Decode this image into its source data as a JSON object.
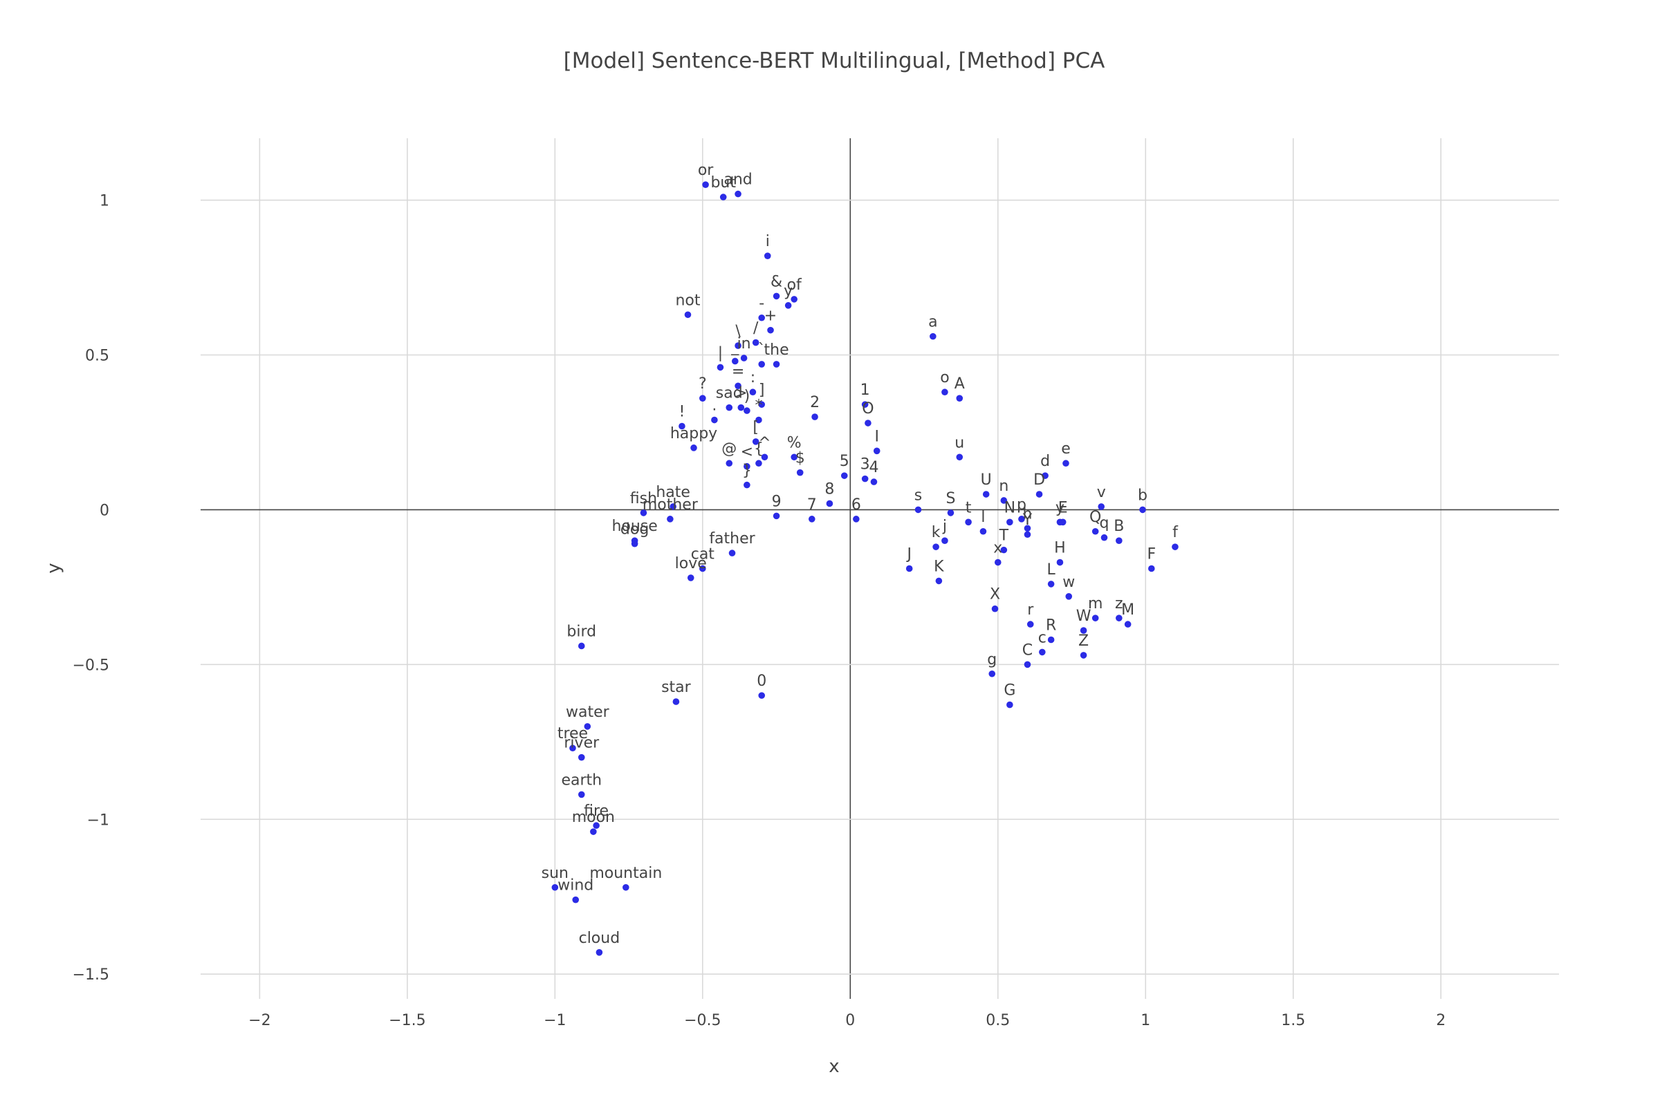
{
  "chart_data": {
    "type": "scatter",
    "title": "[Model] Sentence-BERT Multilingual, [Method] PCA",
    "xlabel": "x",
    "ylabel": "y",
    "xlim": [
      -2.2,
      2.4
    ],
    "ylim": [
      -1.58,
      1.2
    ],
    "xticks": [
      -2,
      -1.5,
      -1,
      -0.5,
      0,
      0.5,
      1,
      1.5,
      2
    ],
    "yticks": [
      -1.5,
      -1,
      -0.5,
      0,
      0.5,
      1
    ],
    "xtick_labels": [
      "−2",
      "−1.5",
      "−1",
      "−0.5",
      "0",
      "0.5",
      "1",
      "1.5",
      "2"
    ],
    "ytick_labels": [
      "−1.5",
      "−1",
      "−0.5",
      "0",
      "0.5",
      "1"
    ],
    "grid": true,
    "marker_color": "#2b2be6",
    "points": [
      {
        "label": "or",
        "x": -0.49,
        "y": 1.05
      },
      {
        "label": "but",
        "x": -0.43,
        "y": 1.01
      },
      {
        "label": "and",
        "x": -0.38,
        "y": 1.02
      },
      {
        "label": "i",
        "x": -0.28,
        "y": 0.82
      },
      {
        "label": "&",
        "x": -0.25,
        "y": 0.69
      },
      {
        "label": "y",
        "x": -0.21,
        "y": 0.66
      },
      {
        "label": "of",
        "x": -0.19,
        "y": 0.68
      },
      {
        "label": "-",
        "x": -0.3,
        "y": 0.62
      },
      {
        "label": "+",
        "x": -0.27,
        "y": 0.58
      },
      {
        "label": "/",
        "x": -0.32,
        "y": 0.54
      },
      {
        "label": "not",
        "x": -0.55,
        "y": 0.63
      },
      {
        "label": "\\",
        "x": -0.38,
        "y": 0.53
      },
      {
        "label": "in",
        "x": -0.36,
        "y": 0.49
      },
      {
        "label": "`",
        "x": -0.3,
        "y": 0.47
      },
      {
        "label": "the",
        "x": -0.25,
        "y": 0.47
      },
      {
        "label": "|",
        "x": -0.44,
        "y": 0.46
      },
      {
        "label": "_",
        "x": -0.39,
        "y": 0.48
      },
      {
        "label": "=",
        "x": -0.38,
        "y": 0.4
      },
      {
        "label": ":",
        "x": -0.33,
        "y": 0.38
      },
      {
        "label": "?",
        "x": -0.5,
        "y": 0.36
      },
      {
        "label": "]",
        "x": -0.3,
        "y": 0.34
      },
      {
        "label": ">",
        "x": -0.37,
        "y": 0.33
      },
      {
        "label": ")",
        "x": -0.35,
        "y": 0.32
      },
      {
        "label": "sad",
        "x": -0.41,
        "y": 0.33
      },
      {
        "label": ".",
        "x": -0.46,
        "y": 0.29
      },
      {
        "label": "*",
        "x": -0.31,
        "y": 0.29
      },
      {
        "label": "!",
        "x": -0.57,
        "y": 0.27
      },
      {
        "label": "[",
        "x": -0.32,
        "y": 0.22
      },
      {
        "label": "happy",
        "x": -0.53,
        "y": 0.2
      },
      {
        "label": "^",
        "x": -0.29,
        "y": 0.17
      },
      {
        "label": "{",
        "x": -0.31,
        "y": 0.15
      },
      {
        "label": "<",
        "x": -0.35,
        "y": 0.14
      },
      {
        "label": "@",
        "x": -0.41,
        "y": 0.15
      },
      {
        "label": "}",
        "x": -0.35,
        "y": 0.08
      },
      {
        "label": "2",
        "x": -0.12,
        "y": 0.3
      },
      {
        "label": "%",
        "x": -0.19,
        "y": 0.17
      },
      {
        "label": "$",
        "x": -0.17,
        "y": 0.12
      },
      {
        "label": "5",
        "x": -0.02,
        "y": 0.11
      },
      {
        "label": "1",
        "x": 0.05,
        "y": 0.34
      },
      {
        "label": "O",
        "x": 0.06,
        "y": 0.28
      },
      {
        "label": "I",
        "x": 0.09,
        "y": 0.19
      },
      {
        "label": "3",
        "x": 0.05,
        "y": 0.1
      },
      {
        "label": "4",
        "x": 0.08,
        "y": 0.09
      },
      {
        "label": "8",
        "x": -0.07,
        "y": 0.02
      },
      {
        "label": "9",
        "x": -0.25,
        "y": -0.02
      },
      {
        "label": "7",
        "x": -0.13,
        "y": -0.03
      },
      {
        "label": "6",
        "x": 0.02,
        "y": -0.03
      },
      {
        "label": "fish",
        "x": -0.7,
        "y": -0.01
      },
      {
        "label": "hate",
        "x": -0.6,
        "y": 0.01
      },
      {
        "label": "mother",
        "x": -0.61,
        "y": -0.03
      },
      {
        "label": "house",
        "x": -0.73,
        "y": -0.1
      },
      {
        "label": "dog",
        "x": -0.73,
        "y": -0.11
      },
      {
        "label": "father",
        "x": -0.4,
        "y": -0.14
      },
      {
        "label": "cat",
        "x": -0.5,
        "y": -0.19
      },
      {
        "label": "love",
        "x": -0.54,
        "y": -0.22
      },
      {
        "label": "bird",
        "x": -0.91,
        "y": -0.44
      },
      {
        "label": "star",
        "x": -0.59,
        "y": -0.62
      },
      {
        "label": "0",
        "x": -0.3,
        "y": -0.6
      },
      {
        "label": "water",
        "x": -0.89,
        "y": -0.7
      },
      {
        "label": "tree",
        "x": -0.94,
        "y": -0.77
      },
      {
        "label": "river",
        "x": -0.91,
        "y": -0.8
      },
      {
        "label": "earth",
        "x": -0.91,
        "y": -0.92
      },
      {
        "label": "fire",
        "x": -0.86,
        "y": -1.02
      },
      {
        "label": "moon",
        "x": -0.87,
        "y": -1.04
      },
      {
        "label": "sun",
        "x": -1.0,
        "y": -1.22
      },
      {
        "label": "mountain",
        "x": -0.76,
        "y": -1.22
      },
      {
        "label": "wind",
        "x": -0.93,
        "y": -1.26
      },
      {
        "label": "cloud",
        "x": -0.85,
        "y": -1.43
      },
      {
        "label": "a",
        "x": 0.28,
        "y": 0.56
      },
      {
        "label": "o",
        "x": 0.32,
        "y": 0.38
      },
      {
        "label": "A",
        "x": 0.37,
        "y": 0.36
      },
      {
        "label": "u",
        "x": 0.37,
        "y": 0.17
      },
      {
        "label": "d",
        "x": 0.66,
        "y": 0.11
      },
      {
        "label": "e",
        "x": 0.73,
        "y": 0.15
      },
      {
        "label": "D",
        "x": 0.64,
        "y": 0.05
      },
      {
        "label": "U",
        "x": 0.46,
        "y": 0.05
      },
      {
        "label": "n",
        "x": 0.52,
        "y": 0.03
      },
      {
        "label": "v",
        "x": 0.85,
        "y": 0.01
      },
      {
        "label": "b",
        "x": 0.99,
        "y": 0.0
      },
      {
        "label": "s",
        "x": 0.23,
        "y": 0.0
      },
      {
        "label": "S",
        "x": 0.34,
        "y": -0.01
      },
      {
        "label": "t",
        "x": 0.4,
        "y": -0.04
      },
      {
        "label": "N",
        "x": 0.54,
        "y": -0.04
      },
      {
        "label": "p",
        "x": 0.58,
        "y": -0.03
      },
      {
        "label": "h",
        "x": 0.6,
        "y": -0.06
      },
      {
        "label": "y",
        "x": 0.71,
        "y": -0.04
      },
      {
        "label": "E",
        "x": 0.72,
        "y": -0.04
      },
      {
        "label": "Q",
        "x": 0.83,
        "y": -0.07
      },
      {
        "label": "q",
        "x": 0.86,
        "y": -0.09
      },
      {
        "label": "B",
        "x": 0.91,
        "y": -0.1
      },
      {
        "label": "f",
        "x": 1.1,
        "y": -0.12
      },
      {
        "label": "F",
        "x": 1.02,
        "y": -0.19
      },
      {
        "label": "l",
        "x": 0.45,
        "y": -0.07
      },
      {
        "label": "T",
        "x": 0.52,
        "y": -0.13
      },
      {
        "label": "Y",
        "x": 0.6,
        "y": -0.08
      },
      {
        "label": "k",
        "x": 0.29,
        "y": -0.12
      },
      {
        "label": "j",
        "x": 0.32,
        "y": -0.1
      },
      {
        "label": "x",
        "x": 0.5,
        "y": -0.17
      },
      {
        "label": "H",
        "x": 0.71,
        "y": -0.17
      },
      {
        "label": "J",
        "x": 0.2,
        "y": -0.19
      },
      {
        "label": "K",
        "x": 0.3,
        "y": -0.23
      },
      {
        "label": "L",
        "x": 0.68,
        "y": -0.24
      },
      {
        "label": "w",
        "x": 0.74,
        "y": -0.28
      },
      {
        "label": "X",
        "x": 0.49,
        "y": -0.32
      },
      {
        "label": "m",
        "x": 0.83,
        "y": -0.35
      },
      {
        "label": "z",
        "x": 0.91,
        "y": -0.35
      },
      {
        "label": "M",
        "x": 0.94,
        "y": -0.37
      },
      {
        "label": "W",
        "x": 0.79,
        "y": -0.39
      },
      {
        "label": "r",
        "x": 0.61,
        "y": -0.37
      },
      {
        "label": "R",
        "x": 0.68,
        "y": -0.42
      },
      {
        "label": "c",
        "x": 0.65,
        "y": -0.46
      },
      {
        "label": "C",
        "x": 0.6,
        "y": -0.5
      },
      {
        "label": "Z",
        "x": 0.79,
        "y": -0.47
      },
      {
        "label": "g",
        "x": 0.48,
        "y": -0.53
      },
      {
        "label": "G",
        "x": 0.54,
        "y": -0.63
      }
    ]
  }
}
